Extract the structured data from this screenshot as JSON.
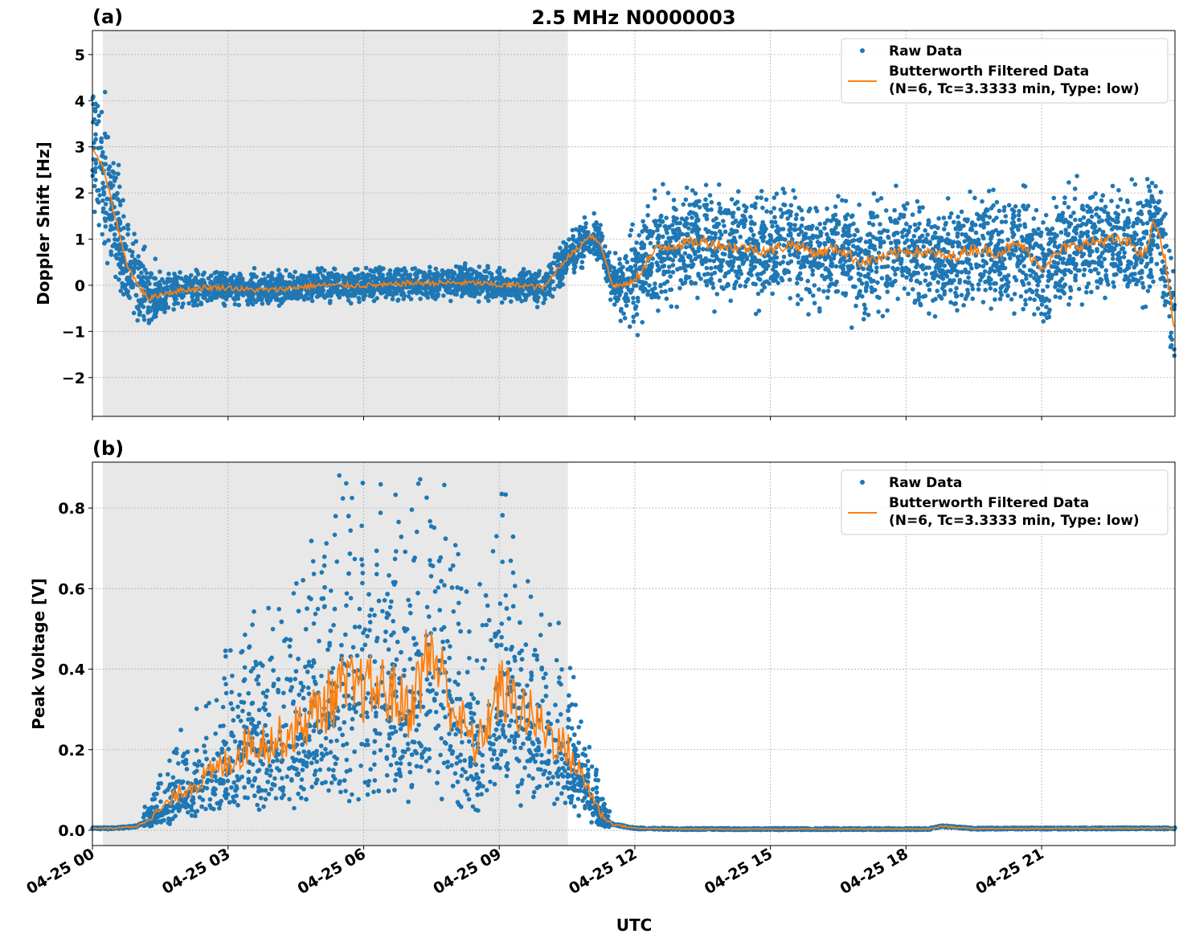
{
  "chart_data": [
    {
      "type": "scatter+line",
      "panel_label": "(a)",
      "title": "2.5 MHz N0000003",
      "xlabel": "",
      "ylabel": "Doppler Shift [Hz]",
      "xlim_hours": [
        0,
        23.95
      ],
      "ylim": [
        -2.84,
        5.52
      ],
      "yticks": [
        -2,
        -1,
        0,
        1,
        2,
        3,
        4,
        5
      ],
      "ytick_labels": [
        "−2",
        "−1",
        "0",
        "1",
        "2",
        "3",
        "4",
        "5"
      ],
      "shaded_hours": [
        0.23,
        10.52
      ],
      "grid": true,
      "legend": "top-right",
      "legend_entries": [
        "Raw Data",
        "Butterworth Filtered Data",
        "(N=6, Tc=3.3333 min, Type: low)"
      ],
      "filtered": {
        "hours": [
          0,
          0.25,
          0.5,
          0.75,
          1,
          1.25,
          1.5,
          2,
          2.5,
          3,
          3.5,
          4,
          4.5,
          5,
          5.5,
          6,
          6.5,
          7,
          7.5,
          8,
          8.5,
          9,
          9.5,
          10,
          10.25,
          10.5,
          10.75,
          11,
          11.25,
          11.5,
          11.75,
          12,
          12.25,
          12.5,
          13,
          13.5,
          14,
          14.5,
          15,
          15.5,
          16,
          16.5,
          17,
          17.5,
          18,
          18.5,
          19,
          19.5,
          20,
          20.5,
          21,
          21.5,
          22,
          22.5,
          23,
          23.25,
          23.5,
          23.75,
          23.95
        ],
        "values": [
          3.0,
          2.5,
          1.5,
          0.5,
          0.0,
          -0.3,
          -0.2,
          -0.1,
          -0.05,
          -0.05,
          -0.1,
          -0.1,
          -0.05,
          0,
          0,
          0,
          0,
          0.05,
          0.05,
          0.05,
          0.05,
          0,
          0,
          -0.05,
          0.3,
          0.6,
          0.8,
          1.1,
          0.9,
          0.0,
          0.0,
          0.1,
          0.5,
          0.8,
          0.9,
          0.95,
          0.85,
          0.8,
          0.75,
          0.9,
          0.7,
          0.8,
          0.5,
          0.6,
          0.75,
          0.7,
          0.6,
          0.8,
          0.7,
          0.9,
          0.4,
          0.8,
          0.9,
          1.0,
          0.9,
          0.6,
          1.4,
          0.5,
          -1.1
        ]
      },
      "raw_spread": {
        "hours": [
          0,
          1,
          1.5,
          2,
          10,
          10.5,
          11.5,
          12,
          24
        ],
        "values": [
          1.2,
          0.7,
          0.4,
          0.25,
          0.25,
          0.35,
          0.3,
          0.8,
          0.9
        ]
      }
    },
    {
      "type": "scatter+line",
      "panel_label": "(b)",
      "title": "",
      "xlabel": "UTC",
      "ylabel": "Peak Voltage [V]",
      "xlim_hours": [
        0,
        23.95
      ],
      "ylim": [
        -0.038,
        0.914
      ],
      "yticks": [
        0,
        0.2,
        0.4,
        0.6,
        0.8
      ],
      "ytick_labels": [
        "0.0",
        "0.2",
        "0.4",
        "0.6",
        "0.8"
      ],
      "shaded_hours": [
        0.23,
        10.52
      ],
      "grid": true,
      "legend": "top-right",
      "legend_entries": [
        "Raw Data",
        "Butterworth Filtered Data",
        "(N=6, Tc=3.3333 min, Type: low)"
      ],
      "filtered": {
        "hours": [
          0,
          0.5,
          1,
          1.5,
          2,
          2.5,
          3,
          3.5,
          4,
          4.5,
          5,
          5.5,
          6,
          6.5,
          7,
          7.5,
          8,
          8.5,
          9,
          9.5,
          10,
          10.5,
          10.75,
          11,
          11.25,
          11.5,
          12,
          13,
          18.5,
          18.8,
          19.5,
          24
        ],
        "values": [
          0.005,
          0.005,
          0.01,
          0.05,
          0.1,
          0.13,
          0.17,
          0.22,
          0.22,
          0.25,
          0.3,
          0.35,
          0.35,
          0.35,
          0.3,
          0.45,
          0.3,
          0.2,
          0.35,
          0.3,
          0.25,
          0.2,
          0.15,
          0.1,
          0.04,
          0.015,
          0.005,
          0.003,
          0.003,
          0.01,
          0.004,
          0.005
        ]
      }
    }
  ],
  "xtick_labels": [
    "04-25 00",
    "04-25 03",
    "04-25 06",
    "04-25 09",
    "04-25 12",
    "04-25 15",
    "04-25 18",
    "04-25 21"
  ],
  "xtick_hours": [
    0,
    3,
    6,
    9,
    12,
    15,
    18,
    21
  ],
  "colors": {
    "raw": "#1f77b4",
    "filtered": "#ff7f0e",
    "shade": "#e8e8e8"
  }
}
